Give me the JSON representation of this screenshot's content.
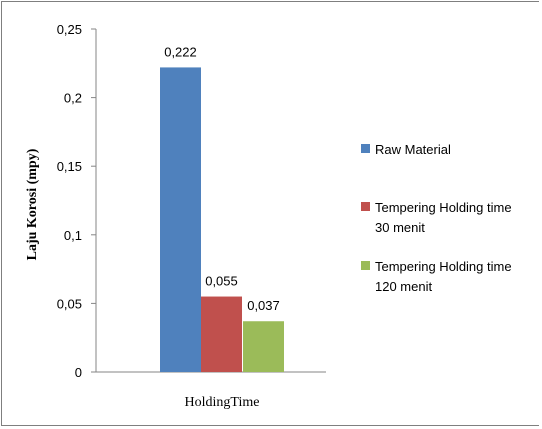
{
  "chart_data": {
    "type": "bar",
    "title": "",
    "ylabel": "Laju Korosi (mpy)",
    "xlabel": "",
    "categories": [
      "HoldingTime"
    ],
    "ylim": [
      0,
      0.25
    ],
    "yticks": [
      {
        "value": 0,
        "label": "0"
      },
      {
        "value": 0.05,
        "label": "0,05"
      },
      {
        "value": 0.1,
        "label": "0,1"
      },
      {
        "value": 0.15,
        "label": "0,15"
      },
      {
        "value": 0.2,
        "label": "0,2"
      },
      {
        "value": 0.25,
        "label": "0,25"
      }
    ],
    "grid": false,
    "legend_position": "right",
    "series": [
      {
        "name": "Raw Material",
        "legend_lines": [
          "Raw Material"
        ],
        "values": [
          0.222
        ],
        "label": "0,222",
        "color": "#4f81bd"
      },
      {
        "name": "Tempering Holding time 30 menit",
        "legend_lines": [
          "Tempering Holding time",
          "30 menit"
        ],
        "values": [
          0.055
        ],
        "label": "0,055",
        "color": "#c0504d"
      },
      {
        "name": "Tempering Holding time 120 menit",
        "legend_lines": [
          "Tempering Holding time",
          "120 menit"
        ],
        "values": [
          0.037
        ],
        "label": "0,037",
        "color": "#9bbb59"
      }
    ]
  }
}
